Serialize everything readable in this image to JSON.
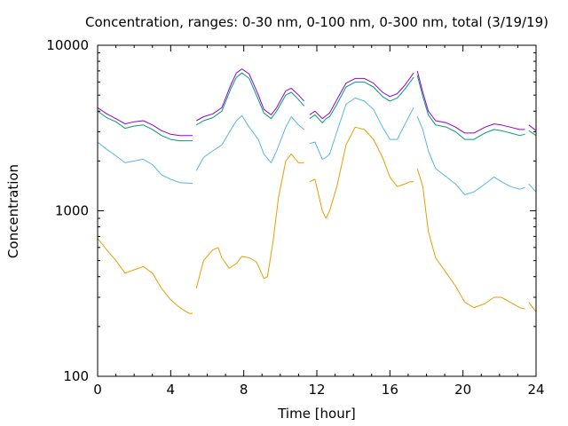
{
  "chart_data": {
    "type": "line",
    "title": "Concentration, ranges: 0-30 nm, 0-100 nm, 0-300 nm, total (3/19/19)",
    "xlabel": "Time [hour]",
    "ylabel": "Concentration",
    "xlim": [
      0,
      24
    ],
    "ylim": [
      100,
      10000
    ],
    "yscale": "log",
    "xticks": [
      0,
      4,
      8,
      12,
      16,
      20,
      24
    ],
    "xtick_labels": [
      "0",
      "4",
      "8",
      "12",
      "16",
      "20",
      "24"
    ],
    "yticks": [
      100,
      1000,
      10000
    ],
    "ytick_labels": [
      "100",
      "1000",
      "10000"
    ],
    "grid": false,
    "legend": "none",
    "series": [
      {
        "color": "#e69f00",
        "segments": [
          [
            [
              0,
              680
            ],
            [
              0.5,
              580
            ],
            [
              1,
              500
            ],
            [
              1.5,
              420
            ],
            [
              2,
              440
            ],
            [
              2.5,
              460
            ],
            [
              3,
              420
            ],
            [
              3.5,
              340
            ],
            [
              4,
              290
            ],
            [
              4.5,
              260
            ],
            [
              5,
              240
            ],
            [
              5.2,
              240
            ]
          ],
          [
            [
              5.4,
              340
            ],
            [
              5.8,
              500
            ],
            [
              6.3,
              580
            ],
            [
              6.6,
              600
            ],
            [
              6.8,
              520
            ],
            [
              7.2,
              450
            ],
            [
              7.6,
              480
            ],
            [
              7.9,
              530
            ],
            [
              8.3,
              520
            ],
            [
              8.7,
              490
            ],
            [
              9.1,
              390
            ],
            [
              9.3,
              400
            ],
            [
              9.6,
              650
            ],
            [
              9.9,
              1200
            ],
            [
              10.3,
              2000
            ],
            [
              10.6,
              2200
            ],
            [
              11,
              1950
            ],
            [
              11.3,
              1950
            ]
          ],
          [
            [
              11.6,
              1500
            ],
            [
              11.9,
              1550
            ],
            [
              12.3,
              1000
            ],
            [
              12.5,
              900
            ],
            [
              12.7,
              1000
            ],
            [
              13.1,
              1400
            ],
            [
              13.6,
              2500
            ],
            [
              14.1,
              3200
            ],
            [
              14.6,
              3100
            ],
            [
              15.1,
              2700
            ],
            [
              15.6,
              2100
            ],
            [
              16,
              1600
            ],
            [
              16.4,
              1400
            ],
            [
              16.8,
              1450
            ],
            [
              17.1,
              1500
            ],
            [
              17.3,
              1500
            ]
          ],
          [
            [
              17.5,
              1800
            ],
            [
              17.8,
              1400
            ],
            [
              18.1,
              750
            ],
            [
              18.5,
              520
            ],
            [
              19.1,
              420
            ],
            [
              19.6,
              350
            ],
            [
              20.1,
              280
            ],
            [
              20.6,
              260
            ],
            [
              21.2,
              275
            ],
            [
              21.7,
              300
            ],
            [
              22.1,
              300
            ],
            [
              22.6,
              280
            ],
            [
              23.1,
              260
            ],
            [
              23.4,
              255
            ]
          ],
          [
            [
              23.6,
              280
            ],
            [
              24,
              245
            ]
          ]
        ]
      },
      {
        "color": "#56b4e9",
        "segments": [
          [
            [
              0,
              2600
            ],
            [
              0.5,
              2350
            ],
            [
              1,
              2150
            ],
            [
              1.5,
              1950
            ],
            [
              2,
              2000
            ],
            [
              2.5,
              2050
            ],
            [
              3,
              1900
            ],
            [
              3.5,
              1650
            ],
            [
              4,
              1550
            ],
            [
              4.5,
              1480
            ],
            [
              5.2,
              1460
            ]
          ],
          [
            [
              5.4,
              1750
            ],
            [
              5.8,
              2100
            ],
            [
              6.3,
              2300
            ],
            [
              6.8,
              2500
            ],
            [
              7.3,
              3100
            ],
            [
              7.6,
              3500
            ],
            [
              7.9,
              3750
            ],
            [
              8.3,
              3200
            ],
            [
              8.8,
              2700
            ],
            [
              9.1,
              2200
            ],
            [
              9.5,
              1950
            ],
            [
              9.8,
              2300
            ],
            [
              10.3,
              3200
            ],
            [
              10.6,
              3700
            ],
            [
              11,
              3300
            ],
            [
              11.3,
              3100
            ]
          ],
          [
            [
              11.6,
              2550
            ],
            [
              11.9,
              2600
            ],
            [
              12.3,
              2050
            ],
            [
              12.5,
              2100
            ],
            [
              12.7,
              2200
            ],
            [
              13.1,
              3000
            ],
            [
              13.6,
              4400
            ],
            [
              14.1,
              4800
            ],
            [
              14.6,
              4600
            ],
            [
              15.1,
              4100
            ],
            [
              15.6,
              3200
            ],
            [
              16,
              2700
            ],
            [
              16.4,
              2700
            ],
            [
              16.8,
              3300
            ],
            [
              17.3,
              4200
            ]
          ],
          [
            [
              17.5,
              3700
            ],
            [
              17.8,
              3100
            ],
            [
              18.1,
              2300
            ],
            [
              18.5,
              1800
            ],
            [
              19.1,
              1600
            ],
            [
              19.6,
              1450
            ],
            [
              20.1,
              1250
            ],
            [
              20.6,
              1300
            ],
            [
              21.2,
              1450
            ],
            [
              21.7,
              1600
            ],
            [
              22.1,
              1500
            ],
            [
              22.6,
              1400
            ],
            [
              23.1,
              1350
            ],
            [
              23.4,
              1380
            ]
          ],
          [
            [
              23.6,
              1450
            ],
            [
              24,
              1300
            ]
          ]
        ]
      },
      {
        "color": "#009e73",
        "segments": [
          [
            [
              0,
              4000
            ],
            [
              0.5,
              3650
            ],
            [
              1,
              3450
            ],
            [
              1.5,
              3150
            ],
            [
              2,
              3250
            ],
            [
              2.5,
              3300
            ],
            [
              3,
              3100
            ],
            [
              3.5,
              2850
            ],
            [
              4,
              2700
            ],
            [
              4.5,
              2650
            ],
            [
              5,
              2650
            ],
            [
              5.2,
              2650
            ]
          ],
          [
            [
              5.4,
              3300
            ],
            [
              5.8,
              3500
            ],
            [
              6.3,
              3650
            ],
            [
              6.8,
              4000
            ],
            [
              7.3,
              5500
            ],
            [
              7.6,
              6400
            ],
            [
              7.9,
              6800
            ],
            [
              8.3,
              6300
            ],
            [
              8.8,
              4700
            ],
            [
              9.1,
              3900
            ],
            [
              9.5,
              3600
            ],
            [
              9.8,
              4000
            ],
            [
              10.3,
              5000
            ],
            [
              10.6,
              5200
            ],
            [
              11,
              4700
            ],
            [
              11.3,
              4300
            ]
          ],
          [
            [
              11.6,
              3600
            ],
            [
              11.9,
              3800
            ],
            [
              12.3,
              3400
            ],
            [
              12.5,
              3600
            ],
            [
              12.7,
              3700
            ],
            [
              13.1,
              4400
            ],
            [
              13.6,
              5600
            ],
            [
              14.1,
              6000
            ],
            [
              14.6,
              6000
            ],
            [
              15.1,
              5600
            ],
            [
              15.6,
              4900
            ],
            [
              16,
              4600
            ],
            [
              16.4,
              4800
            ],
            [
              16.8,
              5400
            ],
            [
              17.3,
              6400
            ]
          ],
          [
            [
              17.5,
              6600
            ],
            [
              17.8,
              4900
            ],
            [
              18.1,
              3800
            ],
            [
              18.5,
              3300
            ],
            [
              19.1,
              3200
            ],
            [
              19.6,
              3000
            ],
            [
              20.1,
              2700
            ],
            [
              20.6,
              2700
            ],
            [
              21.2,
              2950
            ],
            [
              21.7,
              3100
            ],
            [
              22.1,
              3050
            ],
            [
              22.6,
              2950
            ],
            [
              23.1,
              2850
            ],
            [
              23.4,
              2900
            ]
          ],
          [
            [
              23.6,
              3050
            ],
            [
              24,
              2850
            ]
          ]
        ]
      },
      {
        "color": "#9400d3",
        "segments": [
          [
            [
              0,
              4200
            ],
            [
              0.5,
              3850
            ],
            [
              1,
              3600
            ],
            [
              1.5,
              3350
            ],
            [
              2,
              3450
            ],
            [
              2.5,
              3500
            ],
            [
              3,
              3300
            ],
            [
              3.5,
              3050
            ],
            [
              4,
              2900
            ],
            [
              4.5,
              2850
            ],
            [
              5,
              2850
            ],
            [
              5.2,
              2850
            ]
          ],
          [
            [
              5.4,
              3500
            ],
            [
              5.8,
              3700
            ],
            [
              6.3,
              3850
            ],
            [
              6.8,
              4200
            ],
            [
              7.3,
              5800
            ],
            [
              7.6,
              6800
            ],
            [
              7.9,
              7200
            ],
            [
              8.3,
              6700
            ],
            [
              8.8,
              5000
            ],
            [
              9.1,
              4100
            ],
            [
              9.5,
              3800
            ],
            [
              9.8,
              4200
            ],
            [
              10.3,
              5300
            ],
            [
              10.6,
              5500
            ],
            [
              11,
              5000
            ],
            [
              11.3,
              4600
            ]
          ],
          [
            [
              11.6,
              3800
            ],
            [
              11.9,
              4000
            ],
            [
              12.3,
              3600
            ],
            [
              12.5,
              3750
            ],
            [
              12.7,
              3900
            ],
            [
              13.1,
              4700
            ],
            [
              13.6,
              5900
            ],
            [
              14.1,
              6300
            ],
            [
              14.6,
              6300
            ],
            [
              15.1,
              5900
            ],
            [
              15.6,
              5200
            ],
            [
              16,
              4900
            ],
            [
              16.4,
              5100
            ],
            [
              16.8,
              5700
            ],
            [
              17.3,
              6800
            ]
          ],
          [
            [
              17.5,
              7000
            ],
            [
              17.8,
              5200
            ],
            [
              18.1,
              4000
            ],
            [
              18.5,
              3500
            ],
            [
              19.1,
              3400
            ],
            [
              19.6,
              3200
            ],
            [
              20.1,
              2950
            ],
            [
              20.6,
              2950
            ],
            [
              21.2,
              3200
            ],
            [
              21.7,
              3350
            ],
            [
              22.1,
              3300
            ],
            [
              22.6,
              3200
            ],
            [
              23.1,
              3100
            ],
            [
              23.4,
              3100
            ]
          ],
          [
            [
              23.6,
              3300
            ],
            [
              24,
              3050
            ]
          ]
        ]
      }
    ]
  }
}
